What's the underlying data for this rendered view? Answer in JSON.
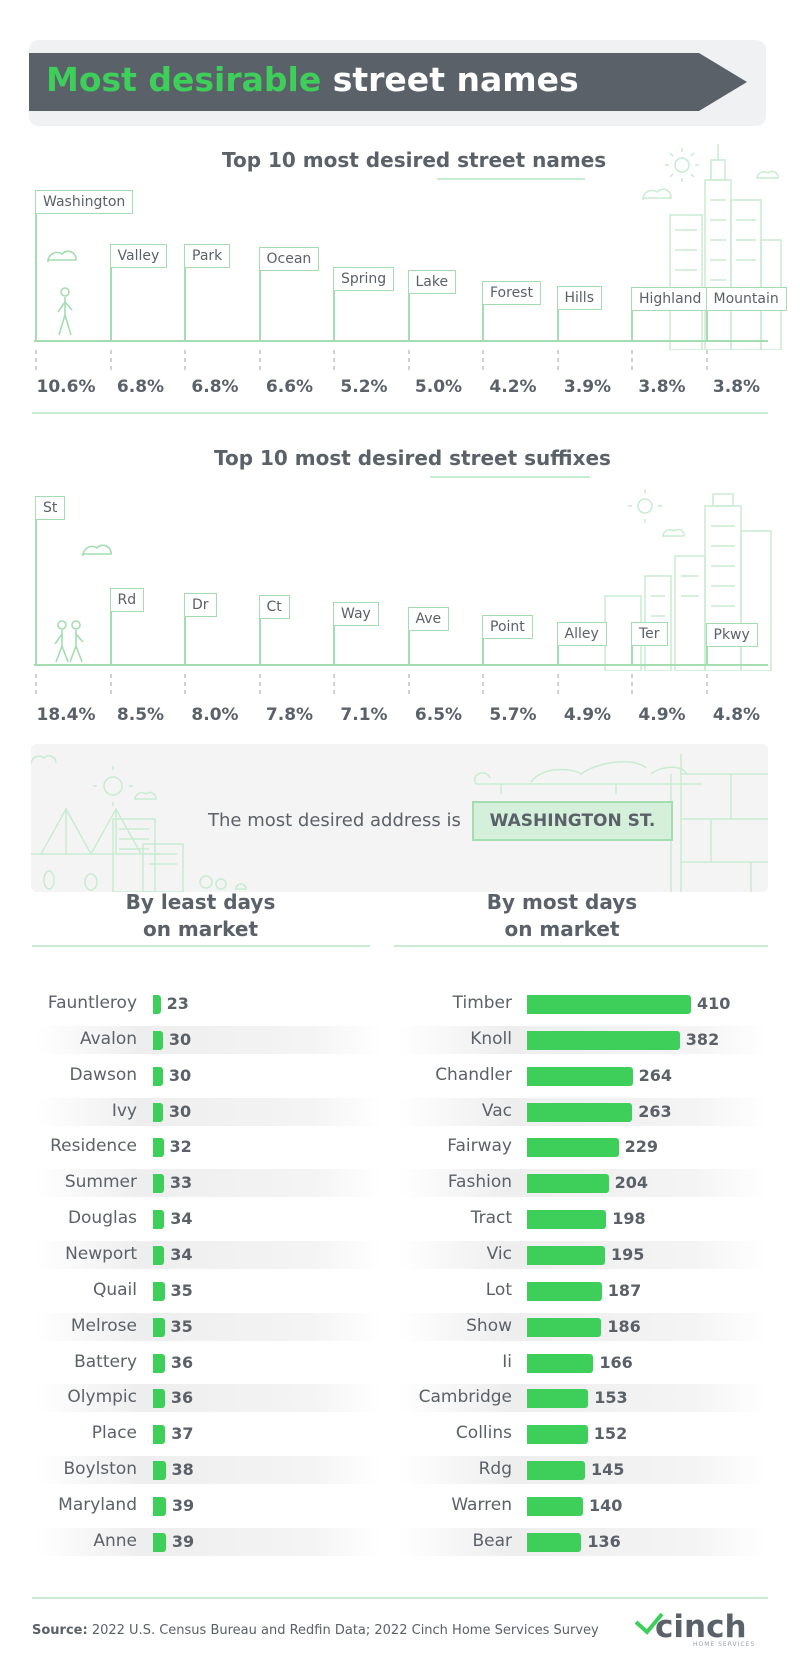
{
  "title": {
    "highlight": "Most desirable",
    "rest": "street names"
  },
  "colors": {
    "accent": "#3dcf5a",
    "banner": "#5a6169",
    "line": "#a3ddb0"
  },
  "section_names": {
    "title": "Top 10 most desired street names"
  },
  "section_suffixes": {
    "title": "Top 10 most desired street suffixes"
  },
  "address": {
    "lead": "The most desired address is",
    "sign": "WASHINGTON ST."
  },
  "least_title": {
    "line1": "By least days",
    "line2": "on market"
  },
  "most_title": {
    "line1": "By most days",
    "line2": "on market"
  },
  "source": {
    "label": "Source:",
    "text": "2022 U.S. Census Bureau and Redfin Data; 2022 Cinch Home Services Survey"
  },
  "logo": {
    "name": "cinch",
    "sub": "HOME SERVICES",
    "icon": "checkmark-roof-icon"
  },
  "chart_data": [
    {
      "type": "bar",
      "title": "Top 10 most desired street names",
      "categories": [
        "Washington",
        "Valley",
        "Park",
        "Ocean",
        "Spring",
        "Lake",
        "Forest",
        "Hills",
        "Highland",
        "Mountain"
      ],
      "values": [
        10.6,
        6.8,
        6.8,
        6.6,
        5.2,
        5.0,
        4.2,
        3.9,
        3.8,
        3.8
      ],
      "labels": [
        "10.6%",
        "6.8%",
        "6.8%",
        "6.6%",
        "5.2%",
        "5.0%",
        "4.2%",
        "3.9%",
        "3.8%",
        "3.8%"
      ],
      "unit": "%"
    },
    {
      "type": "bar",
      "title": "Top 10 most desired street suffixes",
      "categories": [
        "St",
        "Rd",
        "Dr",
        "Ct",
        "Way",
        "Ave",
        "Point",
        "Alley",
        "Ter",
        "Pkwy"
      ],
      "values": [
        18.4,
        8.5,
        8.0,
        7.8,
        7.1,
        6.5,
        5.7,
        4.9,
        4.9,
        4.8
      ],
      "labels": [
        "18.4%",
        "8.5%",
        "8.0%",
        "7.8%",
        "7.1%",
        "6.5%",
        "5.7%",
        "4.9%",
        "4.9%",
        "4.8%"
      ],
      "unit": "%"
    },
    {
      "type": "bar",
      "orientation": "horizontal",
      "title": "By least days on market",
      "categories": [
        "Fauntleroy",
        "Avalon",
        "Dawson",
        "Ivy",
        "Residence",
        "Summer",
        "Douglas",
        "Newport",
        "Quail",
        "Melrose",
        "Battery",
        "Olympic",
        "Place",
        "Boylston",
        "Maryland",
        "Anne"
      ],
      "values": [
        23,
        30,
        30,
        30,
        32,
        33,
        34,
        34,
        35,
        35,
        36,
        36,
        37,
        38,
        39,
        39
      ]
    },
    {
      "type": "bar",
      "orientation": "horizontal",
      "title": "By most days on market",
      "categories": [
        "Timber",
        "Knoll",
        "Chandler",
        "Vac",
        "Fairway",
        "Fashion",
        "Tract",
        "Vic",
        "Lot",
        "Show",
        "Ii",
        "Cambridge",
        "Collins",
        "Rdg",
        "Warren",
        "Bear"
      ],
      "values": [
        410,
        382,
        264,
        263,
        229,
        204,
        198,
        195,
        187,
        186,
        166,
        153,
        152,
        145,
        140,
        136
      ]
    }
  ]
}
